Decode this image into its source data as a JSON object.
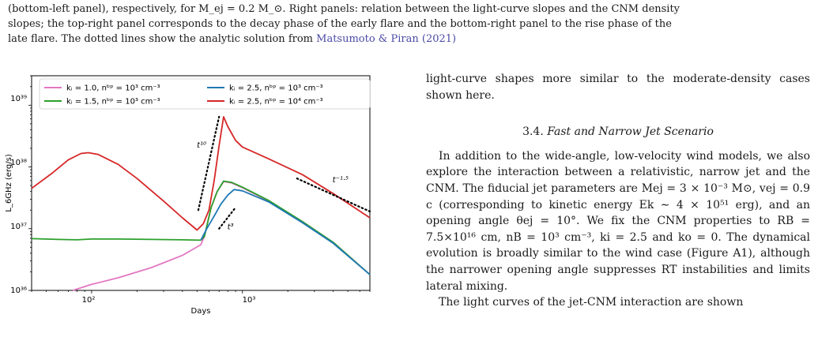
{
  "caption": {
    "line1": "(bottom-left panel), respectively, for M_ej = 0.2 M_⊙. Right panels: relation between the light-curve slopes and the CNM density",
    "line2": "slopes; the top-right panel corresponds to the decay phase of the early flare and the bottom-right panel to the rise phase of the",
    "line3_prefix": "late flare. The dotted lines show the analytic solution from",
    "line3_link": "Matsumoto & Piran (2021)"
  },
  "body": {
    "para1": "light-curve shapes more similar to the moderate-density cases shown here.",
    "section_number": "3.4.",
    "section_title": "Fast and Narrow Jet Scenario",
    "para2_a": "In addition to the wide-angle, low-velocity wind models, we also explore the interaction between a relativistic, narrow jet and the CNM. The fiducial jet parameters are M",
    "para2_b": "ej = 3 × 10⁻³ M⊙, v",
    "para2_c": "ej = 0.9 c (corresponding to kinetic energy E",
    "para2_d": "k ∼ 4 × 10⁵¹ erg), and an opening angle θ",
    "para2_e": "ej = 10°. We fix the CNM properties to R",
    "para2_f": "B = 7.5×10¹⁶ cm, n",
    "para2_g": "B = 10³ cm⁻³, k",
    "para2_h": "i = 2.5 and k",
    "para2_i": "o = 0. The dynamical evolution is broadly similar to the wind case (Figure ",
    "para2_link": "A1",
    "para2_j": "), although the narrower opening angle suppresses RT instabilities and limits lateral mixing.",
    "para3": "The light curves of the jet-CNM interaction are shown"
  },
  "chart_data": {
    "type": "line",
    "xlabel": "Days",
    "ylabel": "L_6GHz (erg/s)",
    "xscale": "log",
    "yscale": "log",
    "xlim": [
      40,
      7000
    ],
    "ylim": [
      1e+36,
      3e+39
    ],
    "xticks": [
      "10²",
      "10³"
    ],
    "yticks": [
      "10³⁶",
      "10³⁷",
      "10³⁸",
      "10³⁹"
    ],
    "legend_position": "top",
    "series": [
      {
        "name": "k_i = 1.0, n_bp = 10³ cm⁻³",
        "color": "#e377c2",
        "points": [
          [
            75,
            1e+36
          ],
          [
            100,
            1.25e+36
          ],
          [
            150,
            1.6e+36
          ],
          [
            250,
            2.35e+36
          ],
          [
            400,
            3.7e+36
          ],
          [
            530,
            5.5e+36
          ],
          [
            560,
            7.5e+36
          ],
          [
            620,
            2.2e+37
          ],
          [
            680,
            4e+37
          ],
          [
            750,
            5.8e+37
          ],
          [
            850,
            5.5e+37
          ],
          [
            1000,
            4.6e+37
          ],
          [
            1500,
            2.8e+37
          ],
          [
            2500,
            1.3e+37
          ],
          [
            4000,
            6e+36
          ],
          [
            7000,
            1.8e+36
          ]
        ]
      },
      {
        "name": "k_i = 1.5, n_bp = 10³ cm⁻³",
        "color": "#2ca02c",
        "points": [
          [
            40,
            6.9e+36
          ],
          [
            60,
            6.7e+36
          ],
          [
            80,
            6.6e+36
          ],
          [
            100,
            6.8e+36
          ],
          [
            150,
            6.8e+36
          ],
          [
            250,
            6.7e+36
          ],
          [
            400,
            6.6e+36
          ],
          [
            530,
            6.5e+36
          ],
          [
            560,
            7.5e+36
          ],
          [
            620,
            2.2e+37
          ],
          [
            680,
            4e+37
          ],
          [
            750,
            5.9e+37
          ],
          [
            850,
            5.6e+37
          ],
          [
            1000,
            4.7e+37
          ],
          [
            1500,
            2.85e+37
          ],
          [
            2500,
            1.3e+37
          ],
          [
            4000,
            6e+36
          ],
          [
            7000,
            1.8e+36
          ]
        ]
      },
      {
        "name": "k_i = 2.5, n_bp = 10³ cm⁻³",
        "color": "#1f77b4",
        "points": [
          [
            530,
            6.5e+36
          ],
          [
            580,
            1e+37
          ],
          [
            650,
            1.6e+37
          ],
          [
            720,
            2.5e+37
          ],
          [
            800,
            3.5e+37
          ],
          [
            880,
            4.3e+37
          ],
          [
            1000,
            4.1e+37
          ],
          [
            1500,
            2.7e+37
          ],
          [
            2500,
            1.25e+37
          ],
          [
            4000,
            5.8e+36
          ],
          [
            7000,
            1.8e+36
          ]
        ]
      },
      {
        "name": "k_i = 2.5, n_bp = 10⁴ cm⁻³",
        "color": "#d62728",
        "points": [
          [
            40,
            4.5e+37
          ],
          [
            55,
            8e+37
          ],
          [
            70,
            1.3e+38
          ],
          [
            85,
            1.65e+38
          ],
          [
            95,
            1.7e+38
          ],
          [
            110,
            1.6e+38
          ],
          [
            150,
            1.1e+38
          ],
          [
            200,
            6.5e+37
          ],
          [
            300,
            2.8e+37
          ],
          [
            400,
            1.5e+37
          ],
          [
            500,
            9.5e+36
          ],
          [
            550,
            1.2e+37
          ],
          [
            600,
            2e+37
          ],
          [
            650,
            6e+37
          ],
          [
            700,
            2.2e+38
          ],
          [
            750,
            6.5e+38
          ],
          [
            800,
            4.5e+38
          ],
          [
            900,
            2.7e+38
          ],
          [
            1000,
            2.1e+38
          ],
          [
            1500,
            1.35e+38
          ],
          [
            2500,
            7.5e+37
          ],
          [
            4000,
            3.7e+37
          ],
          [
            7000,
            1.5e+37
          ]
        ]
      }
    ],
    "annotations": [
      {
        "text": "t¹⁰",
        "points": [
          [
            510,
            2e+37
          ],
          [
            700,
            6.5e+38
          ]
        ]
      },
      {
        "text": "t³",
        "points": [
          [
            700,
            1e+37
          ],
          [
            900,
            2.2e+37
          ]
        ]
      },
      {
        "text": "t⁻¹·⁵",
        "points": [
          [
            2300,
            6.5e+37
          ],
          [
            7000,
            1.9e+37
          ]
        ]
      }
    ]
  },
  "legend_labels": {
    "s1": "kᵢ = 1.0,  nᵇᵖ = 10³ cm⁻³",
    "s2": "kᵢ = 1.5,  nᵇᵖ = 10³ cm⁻³",
    "s3": "kᵢ = 2.5,  nᵇᵖ = 10³ cm⁻³",
    "s4": "kᵢ = 2.5,  nᵇᵖ = 10⁴ cm⁻³"
  }
}
